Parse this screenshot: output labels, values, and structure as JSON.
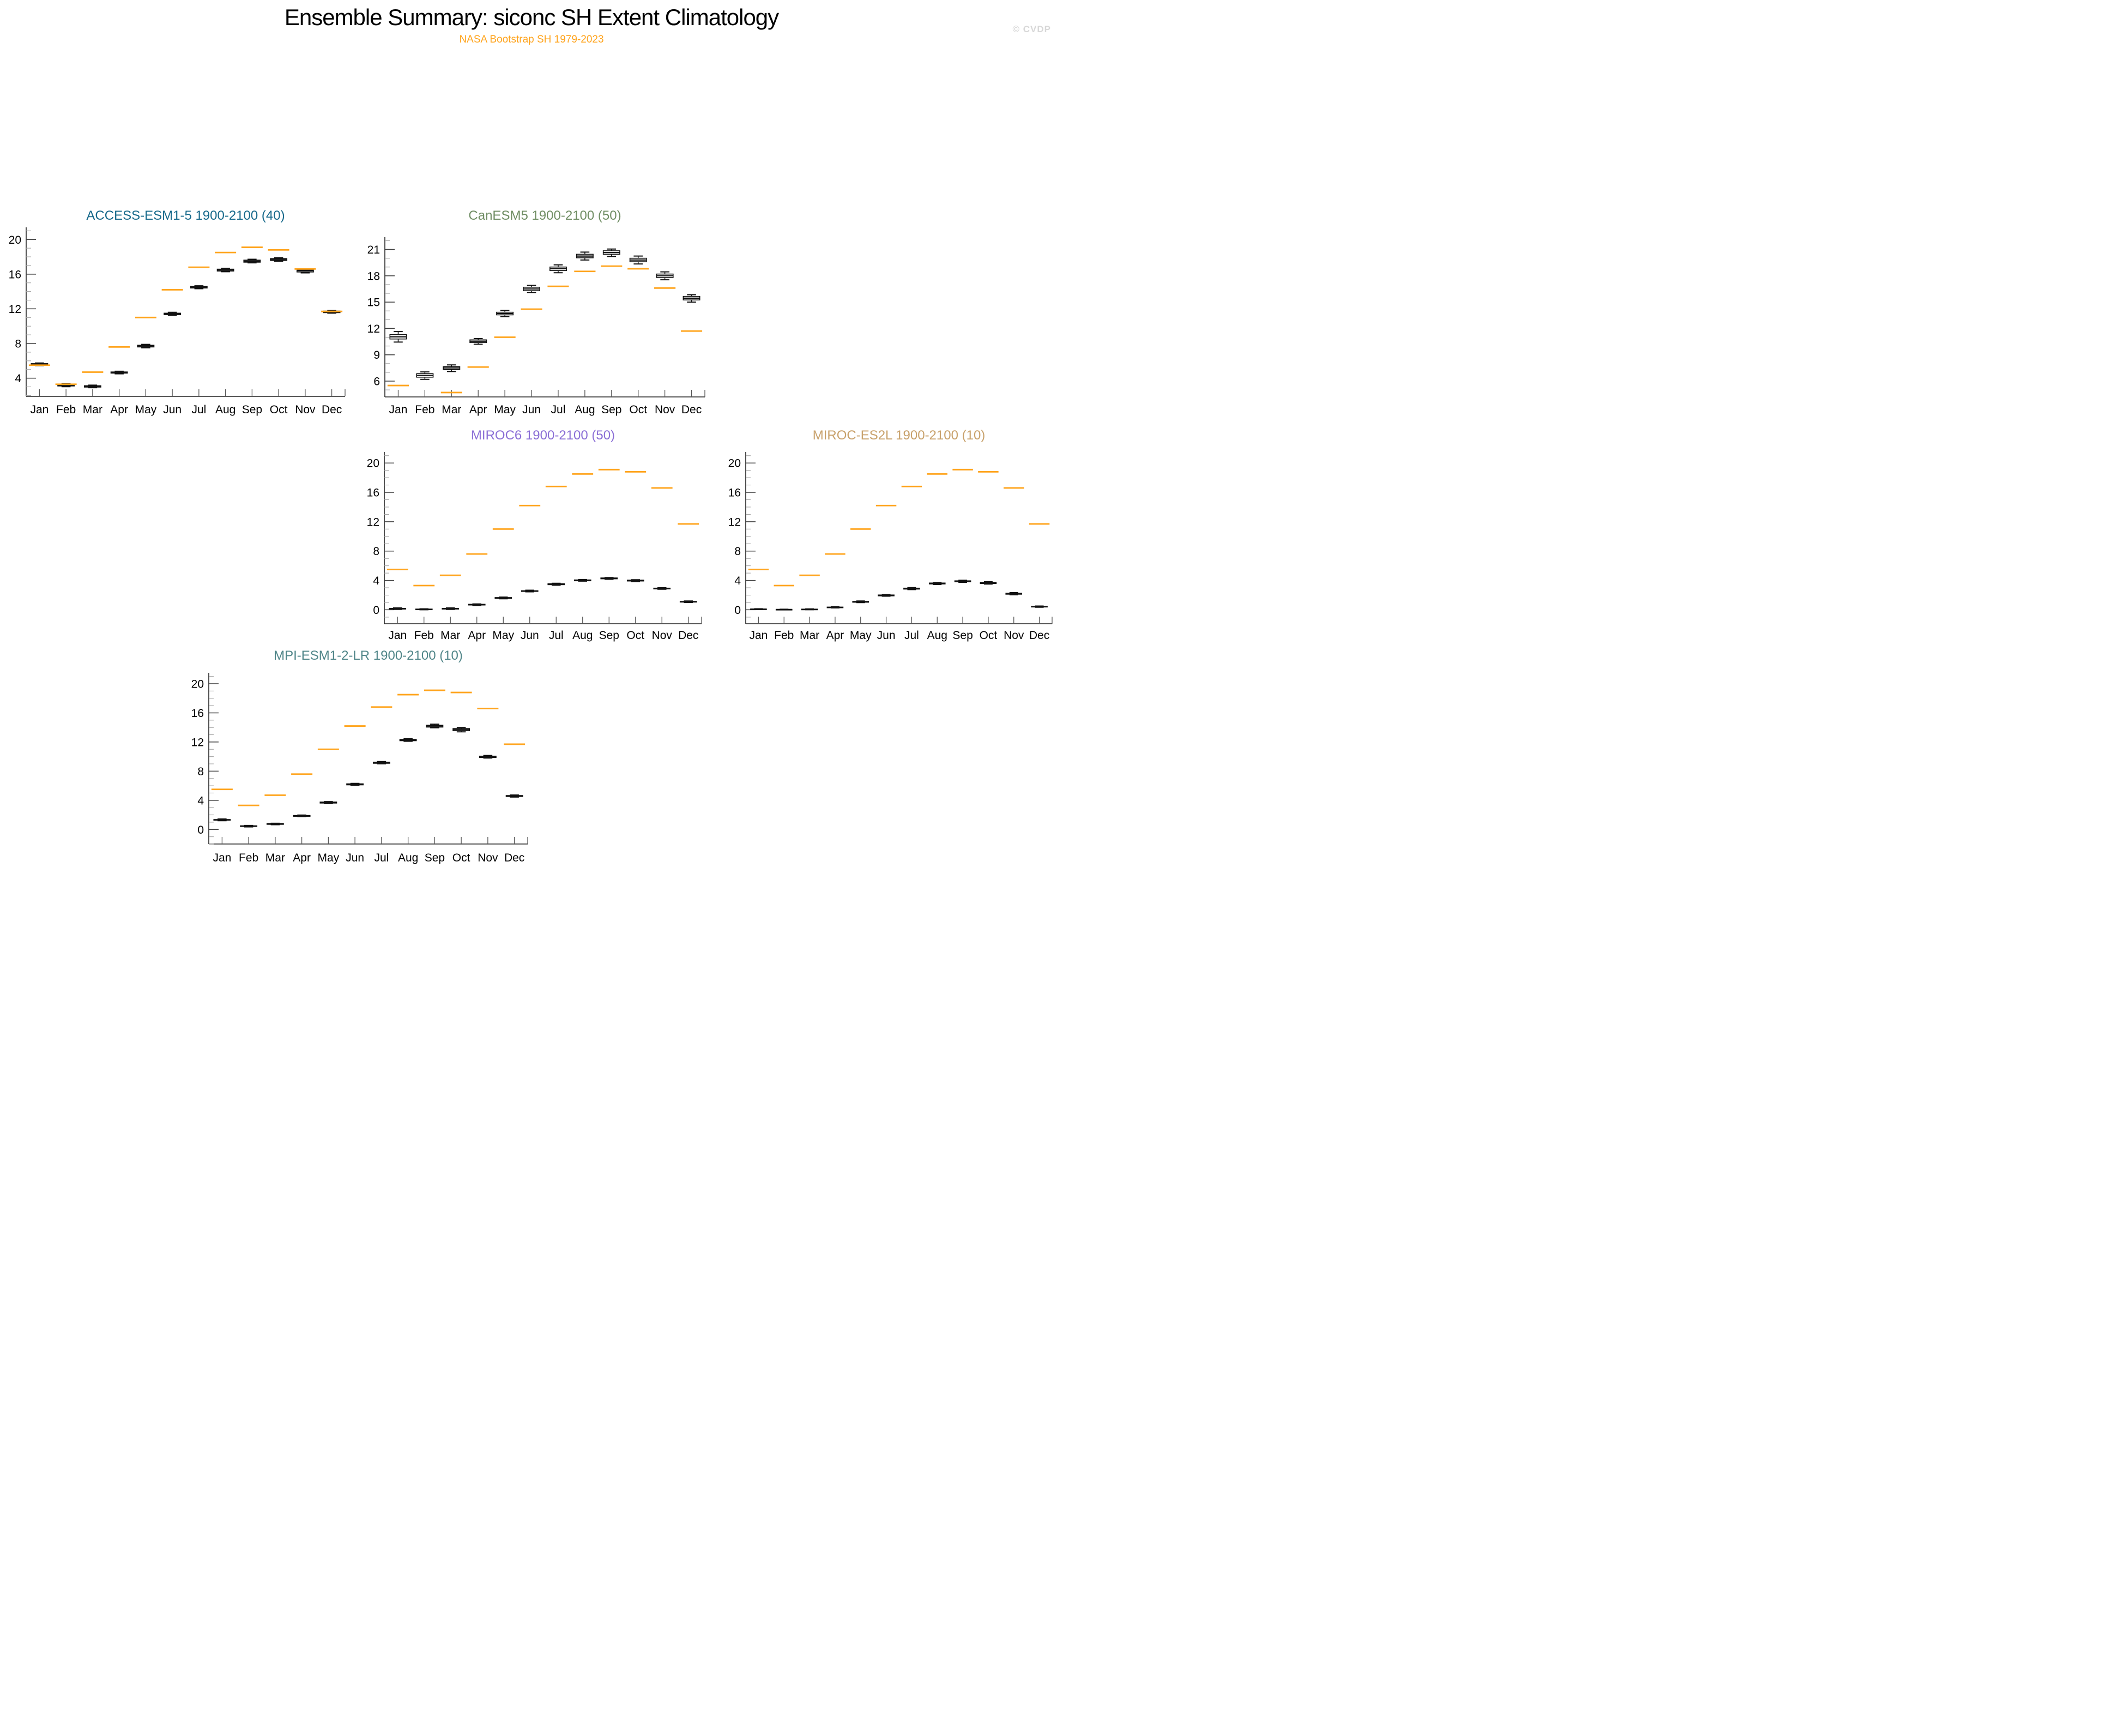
{
  "page": {
    "title": "Ensemble Summary: siconc SH Extent Climatology",
    "subtitle": "NASA Bootstrap SH 1979-2023",
    "watermark": "© CVDP"
  },
  "colors": {
    "obs_line": "#ffa41d",
    "box_outline": "#111111",
    "subtitle": "#ffa41d",
    "watermark": "#d8d8d8",
    "axis": "#222222",
    "tick_major": "#3f3f3f",
    "tick_minor": "#a2a2a2"
  },
  "months": [
    "Jan",
    "Feb",
    "Mar",
    "Apr",
    "May",
    "Jun",
    "Jul",
    "Aug",
    "Sep",
    "Oct",
    "Nov",
    "Dec"
  ],
  "obs": {
    "label": "NASA Bootstrap SH 1979-2023",
    "values": [
      5.5,
      3.3,
      4.7,
      7.6,
      11.0,
      14.2,
      16.8,
      18.5,
      19.1,
      18.8,
      16.6,
      11.7
    ]
  },
  "chart_data": [
    {
      "type": "box",
      "title": "ACCESS-ESM1-5 1900-2100 (40)",
      "title_color": "#15688a",
      "model": "ACCESS-ESM1-5",
      "period": "1900-2100",
      "members": 40,
      "categories": [
        "Jan",
        "Feb",
        "Mar",
        "Apr",
        "May",
        "Jun",
        "Jul",
        "Aug",
        "Sep",
        "Oct",
        "Nov",
        "Dec"
      ],
      "ylim": [
        1.9,
        21.4
      ],
      "yticks_major": [
        4,
        8,
        12,
        16,
        20
      ],
      "yminor_step": 1,
      "grid": false,
      "box_stats_order": [
        "low",
        "q1",
        "median",
        "q3",
        "high"
      ],
      "box_stats": [
        [
          5.45,
          5.52,
          5.6,
          5.68,
          5.75
        ],
        [
          3.02,
          3.1,
          3.2,
          3.28,
          3.36
        ],
        [
          2.9,
          2.97,
          3.05,
          3.13,
          3.2
        ],
        [
          4.5,
          4.58,
          4.65,
          4.72,
          4.8
        ],
        [
          7.5,
          7.6,
          7.7,
          7.8,
          7.9
        ],
        [
          11.25,
          11.33,
          11.42,
          11.5,
          11.6
        ],
        [
          14.32,
          14.4,
          14.5,
          14.58,
          14.66
        ],
        [
          16.28,
          16.36,
          16.48,
          16.58,
          16.68
        ],
        [
          17.3,
          17.38,
          17.5,
          17.62,
          17.72
        ],
        [
          17.5,
          17.58,
          17.7,
          17.8,
          17.9
        ],
        [
          16.15,
          16.25,
          16.4,
          16.5,
          16.62
        ],
        [
          11.5,
          11.56,
          11.65,
          11.74,
          11.8
        ]
      ],
      "obs_values": [
        5.5,
        3.3,
        4.7,
        7.6,
        11.0,
        14.2,
        16.8,
        18.5,
        19.1,
        18.8,
        16.6,
        11.7
      ]
    },
    {
      "type": "box",
      "title": "CanESM5 1900-2100 (50)",
      "title_color": "#6f8d63",
      "model": "CanESM5",
      "period": "1900-2100",
      "members": 50,
      "categories": [
        "Jan",
        "Feb",
        "Mar",
        "Apr",
        "May",
        "Jun",
        "Jul",
        "Aug",
        "Sep",
        "Oct",
        "Nov",
        "Dec"
      ],
      "ylim": [
        4.2,
        22.4
      ],
      "yticks_major": [
        6,
        9,
        12,
        15,
        18,
        21
      ],
      "yminor_step": 1,
      "grid": false,
      "box_stats_order": [
        "low",
        "q1",
        "median",
        "q3",
        "high"
      ],
      "box_stats": [
        [
          10.45,
          10.8,
          11.05,
          11.3,
          11.65
        ],
        [
          6.2,
          6.45,
          6.65,
          6.85,
          7.05
        ],
        [
          7.1,
          7.32,
          7.5,
          7.65,
          7.85
        ],
        [
          10.2,
          10.4,
          10.55,
          10.7,
          10.85
        ],
        [
          13.35,
          13.55,
          13.7,
          13.85,
          14.05
        ],
        [
          16.1,
          16.3,
          16.5,
          16.7,
          16.9
        ],
        [
          18.35,
          18.6,
          18.8,
          19.0,
          19.25
        ],
        [
          19.8,
          20.05,
          20.25,
          20.45,
          20.7
        ],
        [
          20.2,
          20.45,
          20.65,
          20.85,
          21.05
        ],
        [
          19.35,
          19.6,
          19.8,
          20.0,
          20.25
        ],
        [
          17.55,
          17.8,
          18.0,
          18.2,
          18.45
        ],
        [
          15.0,
          15.25,
          15.45,
          15.65,
          15.85
        ]
      ],
      "obs_values": [
        5.5,
        3.3,
        4.7,
        7.6,
        11.0,
        14.2,
        16.8,
        18.5,
        19.1,
        18.8,
        16.6,
        11.7
      ]
    },
    {
      "type": "box",
      "title": "MIROC6 1900-2100 (50)",
      "title_color": "#8b6fd6",
      "model": "MIROC6",
      "period": "1900-2100",
      "members": 50,
      "categories": [
        "Jan",
        "Feb",
        "Mar",
        "Apr",
        "May",
        "Jun",
        "Jul",
        "Aug",
        "Sep",
        "Oct",
        "Nov",
        "Dec"
      ],
      "ylim": [
        -1.9,
        21.5
      ],
      "yticks_major": [
        0,
        4,
        8,
        12,
        16,
        20
      ],
      "yminor_step": 1,
      "grid": false,
      "box_stats_order": [
        "low",
        "q1",
        "median",
        "q3",
        "high"
      ],
      "box_stats": [
        [
          0.05,
          0.1,
          0.15,
          0.2,
          0.25
        ],
        [
          0.0,
          0.02,
          0.06,
          0.1,
          0.13
        ],
        [
          0.05,
          0.1,
          0.15,
          0.2,
          0.25
        ],
        [
          0.6,
          0.65,
          0.7,
          0.75,
          0.8
        ],
        [
          1.5,
          1.55,
          1.6,
          1.67,
          1.73
        ],
        [
          2.45,
          2.5,
          2.55,
          2.6,
          2.67
        ],
        [
          3.35,
          3.42,
          3.49,
          3.55,
          3.62
        ],
        [
          3.9,
          3.95,
          4.01,
          4.07,
          4.13
        ],
        [
          4.15,
          4.22,
          4.28,
          4.34,
          4.4
        ],
        [
          3.85,
          3.92,
          3.98,
          4.04,
          4.1
        ],
        [
          2.8,
          2.85,
          2.9,
          2.95,
          3.0
        ],
        [
          1.0,
          1.05,
          1.1,
          1.15,
          1.2
        ]
      ],
      "obs_values": [
        5.5,
        3.3,
        4.7,
        7.6,
        11.0,
        14.2,
        16.8,
        18.5,
        19.1,
        18.8,
        16.6,
        11.7
      ]
    },
    {
      "type": "box",
      "title": "MIROC-ES2L 1900-2100 (10)",
      "title_color": "#c8a16b",
      "model": "MIROC-ES2L",
      "period": "1900-2100",
      "members": 10,
      "categories": [
        "Jan",
        "Feb",
        "Mar",
        "Apr",
        "May",
        "Jun",
        "Jul",
        "Aug",
        "Sep",
        "Oct",
        "Nov",
        "Dec"
      ],
      "ylim": [
        -1.9,
        21.5
      ],
      "yticks_major": [
        0,
        4,
        8,
        12,
        16,
        20
      ],
      "yminor_step": 1,
      "grid": false,
      "box_stats_order": [
        "low",
        "q1",
        "median",
        "q3",
        "high"
      ],
      "box_stats": [
        [
          0.03,
          0.05,
          0.08,
          0.11,
          0.14
        ],
        [
          0.0,
          0.01,
          0.03,
          0.06,
          0.08
        ],
        [
          0.01,
          0.03,
          0.06,
          0.09,
          0.12
        ],
        [
          0.25,
          0.29,
          0.33,
          0.37,
          0.41
        ],
        [
          0.98,
          1.03,
          1.09,
          1.15,
          1.2
        ],
        [
          1.85,
          1.9,
          1.96,
          2.02,
          2.08
        ],
        [
          2.75,
          2.82,
          2.89,
          2.95,
          3.02
        ],
        [
          3.45,
          3.52,
          3.58,
          3.65,
          3.72
        ],
        [
          3.75,
          3.82,
          3.89,
          3.95,
          4.02
        ],
        [
          3.5,
          3.58,
          3.66,
          3.74,
          3.82
        ],
        [
          2.05,
          2.12,
          2.19,
          2.26,
          2.33
        ],
        [
          0.35,
          0.39,
          0.43,
          0.47,
          0.51
        ]
      ],
      "obs_values": [
        5.5,
        3.3,
        4.7,
        7.6,
        11.0,
        14.2,
        16.8,
        18.5,
        19.1,
        18.8,
        16.6,
        11.7
      ]
    },
    {
      "type": "box",
      "title": "MPI-ESM1-2-LR 1900-2100 (10)",
      "title_color": "#4f8588",
      "model": "MPI-ESM1-2-LR",
      "period": "1900-2100",
      "members": 10,
      "categories": [
        "Jan",
        "Feb",
        "Mar",
        "Apr",
        "May",
        "Jun",
        "Jul",
        "Aug",
        "Sep",
        "Oct",
        "Nov",
        "Dec"
      ],
      "ylim": [
        -2.0,
        21.5
      ],
      "yticks_major": [
        0,
        4,
        8,
        12,
        16,
        20
      ],
      "yminor_step": 1,
      "grid": false,
      "box_stats_order": [
        "low",
        "q1",
        "median",
        "q3",
        "high"
      ],
      "box_stats": [
        [
          1.2,
          1.26,
          1.31,
          1.37,
          1.43
        ],
        [
          0.35,
          0.4,
          0.45,
          0.5,
          0.55
        ],
        [
          0.65,
          0.7,
          0.75,
          0.8,
          0.85
        ],
        [
          1.75,
          1.8,
          1.86,
          1.92,
          1.98
        ],
        [
          3.55,
          3.62,
          3.69,
          3.76,
          3.83
        ],
        [
          6.05,
          6.12,
          6.19,
          6.26,
          6.33
        ],
        [
          9.0,
          9.08,
          9.16,
          9.24,
          9.32
        ],
        [
          12.1,
          12.18,
          12.27,
          12.36,
          12.45
        ],
        [
          13.95,
          14.05,
          14.18,
          14.3,
          14.45
        ],
        [
          13.4,
          13.55,
          13.7,
          13.85,
          14.0
        ],
        [
          9.8,
          9.88,
          9.97,
          10.06,
          10.15
        ],
        [
          4.45,
          4.52,
          4.59,
          4.66,
          4.73
        ]
      ],
      "obs_values": [
        5.5,
        3.3,
        4.7,
        7.6,
        11.0,
        14.2,
        16.8,
        18.5,
        19.1,
        18.8,
        16.6,
        11.7
      ]
    }
  ]
}
